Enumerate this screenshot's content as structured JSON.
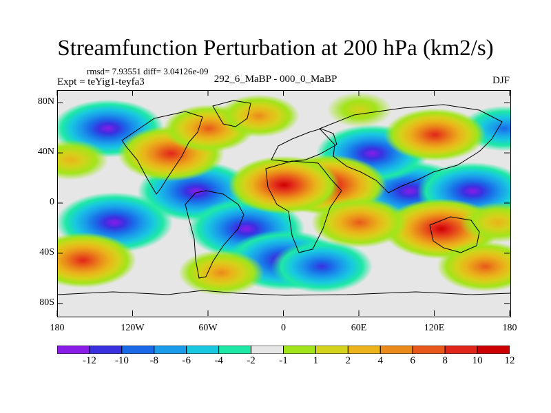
{
  "title": "Streamfunction Perturbation at 200 hPa (km2/s)",
  "stats": "rmsd= 7.93551  diff= 3.04126e-09",
  "left_label": "Expt = teYig1-teyfa3",
  "center_label": "292_6_MaBP - 000_0_MaBP",
  "right_label": "DJF",
  "chart_data": {
    "type": "heatmap",
    "title": "Streamfunction Perturbation at 200 hPa (km2/s)",
    "units": "km2/s",
    "x_range": [
      -180,
      180
    ],
    "y_range": [
      -90,
      90
    ],
    "lat_ticks": [
      "80N",
      "40N",
      "0",
      "40S",
      "80S"
    ],
    "lat_tick_values": [
      80,
      40,
      0,
      -40,
      -80
    ],
    "lon_ticks": [
      "180",
      "120W",
      "60W",
      "0",
      "60E",
      "120E",
      "180"
    ],
    "lon_tick_values": [
      -180,
      -120,
      -60,
      0,
      60,
      120,
      180
    ],
    "colorbar_labels": [
      "-12",
      "-10",
      "-8",
      "-6",
      "-4",
      "-2",
      "-1",
      "1",
      "2",
      "4",
      "6",
      "8",
      "10",
      "12"
    ],
    "colorbar_colors": [
      "#8a1ce8",
      "#3a30e0",
      "#1a6ae8",
      "#1a9cea",
      "#18c8e0",
      "#1ee8a6",
      "#e6e6e6",
      "#a2e41a",
      "#d4d21a",
      "#eab41a",
      "#ea8a1a",
      "#e8581a",
      "#e0261a",
      "#cc0000"
    ],
    "features": [
      {
        "lon": 100,
        "lat": 10,
        "value": -13
      },
      {
        "lon": 150,
        "lat": 10,
        "value": -11
      },
      {
        "lon": -140,
        "lat": 60,
        "value": -11
      },
      {
        "lon": -135,
        "lat": -15,
        "value": -12
      },
      {
        "lon": -70,
        "lat": 10,
        "value": -12
      },
      {
        "lon": -30,
        "lat": -20,
        "value": -12
      },
      {
        "lon": 0,
        "lat": -45,
        "value": -13
      },
      {
        "lon": 70,
        "lat": 40,
        "value": -11
      },
      {
        "lon": 30,
        "lat": -50,
        "value": -9
      },
      {
        "lon": 175,
        "lat": 60,
        "value": -6
      },
      {
        "lon": 35,
        "lat": 15,
        "value": 13
      },
      {
        "lon": 0,
        "lat": 15,
        "value": 11
      },
      {
        "lon": -90,
        "lat": 40,
        "value": 10
      },
      {
        "lon": 125,
        "lat": -20,
        "value": 12
      },
      {
        "lon": -160,
        "lat": -45,
        "value": 10
      },
      {
        "lon": 120,
        "lat": 55,
        "value": 9
      },
      {
        "lon": -60,
        "lat": 60,
        "value": 7
      },
      {
        "lon": 60,
        "lat": -15,
        "value": 8
      },
      {
        "lon": 160,
        "lat": -50,
        "value": 8
      },
      {
        "lon": -50,
        "lat": -55,
        "value": 6
      },
      {
        "lon": -20,
        "lat": 70,
        "value": 5
      },
      {
        "lon": -170,
        "lat": 35,
        "value": 4
      },
      {
        "lon": 170,
        "lat": -15,
        "value": 4
      },
      {
        "lon": 60,
        "lat": 75,
        "value": 2
      }
    ]
  }
}
